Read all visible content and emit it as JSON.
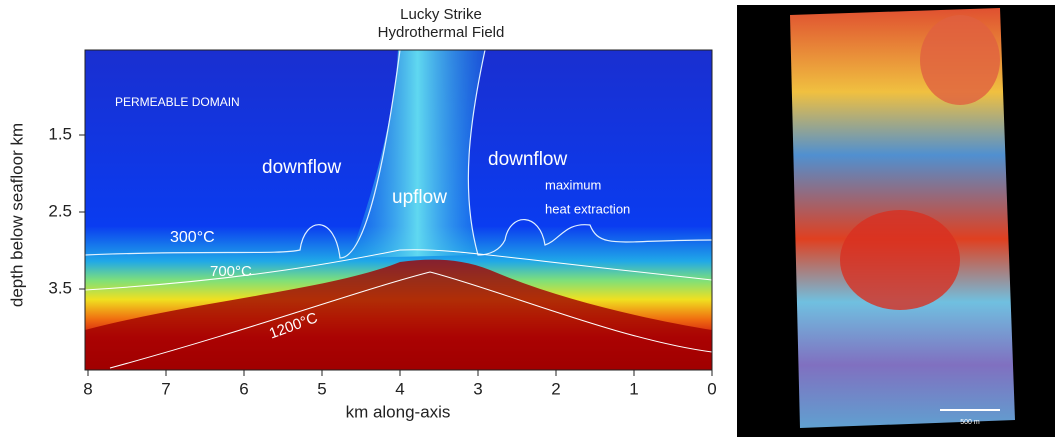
{
  "panel_a": {
    "title_line1": "Lucky Strike",
    "title_line2": "Hydrothermal Field",
    "x_label": "km along-axis",
    "y_label": "depth below seafloor km",
    "x_ticks": [
      8,
      7,
      6,
      5,
      4,
      3,
      2,
      1,
      0
    ],
    "y_ticks": [
      1.5,
      2.5,
      3.5
    ],
    "annotations": {
      "permeable": "PERMEABLE DOMAIN",
      "downflow_left": "downflow",
      "downflow_right": "downflow",
      "upflow": "upflow",
      "max_heat_1": "maximum",
      "max_heat_2": "heat extraction",
      "iso_300": "300°C",
      "iso_700": "700°C",
      "iso_1200": "1200°C"
    }
  },
  "panel_b": {
    "scale_label": "500 m"
  }
}
